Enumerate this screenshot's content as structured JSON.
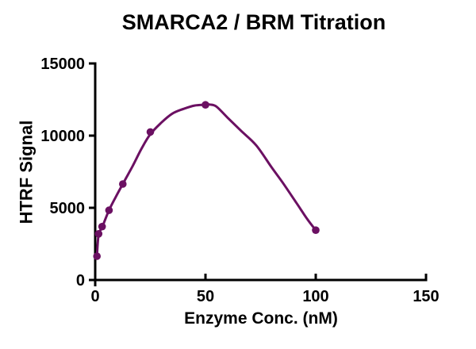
{
  "figure": {
    "background": "#ffffff",
    "axis_color": "#000000"
  },
  "chart_data": {
    "type": "scatter",
    "title": "SMARCA2 / BRM Titration",
    "xlabel": "Enzyme Conc. (nM)",
    "ylabel": "HTRF Signal",
    "xlim": [
      0,
      150
    ],
    "ylim": [
      0,
      15000
    ],
    "x_ticks": [
      0,
      50,
      100,
      150
    ],
    "y_ticks": [
      0,
      5000,
      10000,
      15000
    ],
    "grid": false,
    "legend": "none",
    "series": [
      {
        "name": "SMARCA2 / BRM",
        "color": "#6B1062",
        "marker": "circle",
        "points": [
          [
            0.78,
            1650
          ],
          [
            1.56,
            3200
          ],
          [
            3.13,
            3700
          ],
          [
            6.25,
            4830
          ],
          [
            12.5,
            6650
          ],
          [
            25,
            10250
          ],
          [
            50,
            12130
          ],
          [
            100,
            3450
          ]
        ],
        "fit_curve": [
          [
            0.78,
            1650
          ],
          [
            1.56,
            3150
          ],
          [
            3.13,
            3650
          ],
          [
            6.25,
            4830
          ],
          [
            9.5,
            5800
          ],
          [
            12.5,
            6650
          ],
          [
            17,
            7900
          ],
          [
            21,
            9100
          ],
          [
            25,
            10100
          ],
          [
            30,
            10900
          ],
          [
            35,
            11530
          ],
          [
            40,
            11850
          ],
          [
            45,
            12080
          ],
          [
            50,
            12140
          ],
          [
            52,
            12155
          ],
          [
            55,
            12010
          ],
          [
            60,
            11250
          ],
          [
            66,
            10350
          ],
          [
            73,
            9330
          ],
          [
            80,
            7800
          ],
          [
            85,
            6750
          ],
          [
            90,
            5620
          ],
          [
            93,
            4940
          ],
          [
            96,
            4250
          ],
          [
            100,
            3450
          ]
        ]
      }
    ]
  }
}
